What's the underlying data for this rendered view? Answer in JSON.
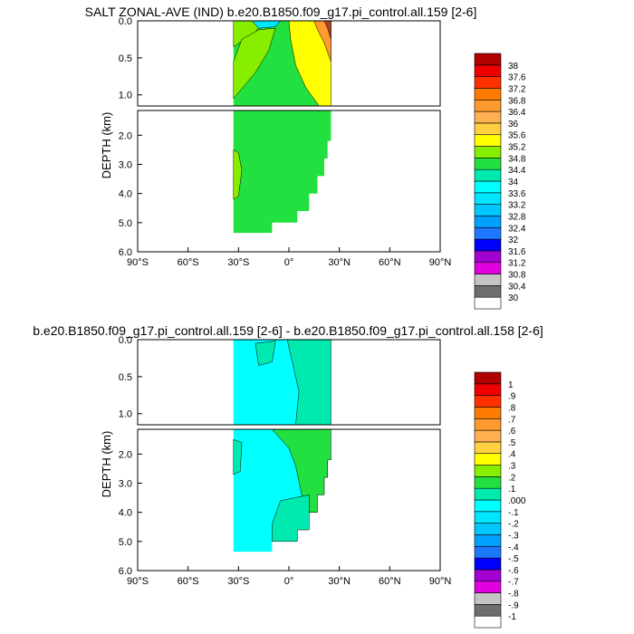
{
  "chart_data": [
    {
      "type": "heatmap",
      "title": "SALT ZONAL-AVE (IND) b.e20.B1850.f09_g17.pi_control.all.159 [2-6]",
      "ylabel": "DEPTH (km)",
      "xlim": [
        -90,
        90
      ],
      "ylim": [
        6.0,
        0.0
      ],
      "x_ticks": [
        "90°S",
        "60°S",
        "30°S",
        "0°",
        "30°N",
        "60°N",
        "90°N"
      ],
      "y_ticks_upper": [
        "0.0",
        "0.5",
        "1.0"
      ],
      "y_ticks_lower": [
        "2.0",
        "3.0",
        "4.0",
        "5.0",
        "6.0"
      ],
      "colorbar_labels": [
        "30",
        "30.4",
        "30.8",
        "31.2",
        "31.6",
        "32",
        "32.4",
        "32.8",
        "33.2",
        "33.6",
        "34",
        "34.4",
        "34.8",
        "35.2",
        "35.6",
        "36",
        "36.4",
        "36.8",
        "37.2",
        "37.6",
        "38"
      ],
      "colorbar_colors": [
        "#ffffff",
        "#6e6e6e",
        "#c4c4c4",
        "#e000e0",
        "#a000d0",
        "#0000ff",
        "#1e78ff",
        "#00a0ff",
        "#00c8ff",
        "#00e6ff",
        "#00ffff",
        "#00eab0",
        "#22e040",
        "#88ee00",
        "#ffff00",
        "#ffd040",
        "#ffb050",
        "#ff9a30",
        "#ff7a00",
        "#ff3000",
        "#ee0000",
        "#b00000"
      ],
      "region": {
        "x_west": -33,
        "x_east": 25,
        "bottom_depth": 5.35
      },
      "fields": [
        {
          "range": [
            34.4,
            34.8
          ],
          "color": "#22e040",
          "where": "dominant water mass, upper and deep"
        },
        {
          "range": [
            34.8,
            35.2
          ],
          "color": "#88ee00",
          "where": "upper 1 km south of 20°S and deep south 2.5–4 km"
        },
        {
          "range": [
            35.2,
            35.6
          ],
          "color": "#ffff00",
          "where": "northern upper ocean 0–1.2 km"
        },
        {
          "range": [
            35.6,
            38.0
          ],
          "color": "#ff9a30",
          "where": "surface near 20–25°N"
        },
        {
          "range": [
            33.6,
            34.4
          ],
          "color": "#00e6ff",
          "where": "near-surface 25°S–5°S"
        }
      ]
    },
    {
      "type": "heatmap",
      "title": "b.e20.B1850.f09_g17.pi_control.all.159 [2-6] - b.e20.B1850.f09_g17.pi_control.all.158 [2-6]",
      "ylabel": "DEPTH (km)",
      "xlim": [
        -90,
        90
      ],
      "ylim": [
        6.0,
        0.0
      ],
      "x_ticks": [
        "90°S",
        "60°S",
        "30°S",
        "0°",
        "30°N",
        "60°N",
        "90°N"
      ],
      "y_ticks_upper": [
        "0.0",
        "0.5",
        "1.0"
      ],
      "y_ticks_lower": [
        "2.0",
        "3.0",
        "4.0",
        "5.0",
        "6.0"
      ],
      "colorbar_labels": [
        "-1",
        "-.9",
        "-.8",
        "-.7",
        "-.6",
        "-.5",
        "-.4",
        "-.3",
        "-.2",
        "-.1",
        ".000",
        ".1",
        ".2",
        ".3",
        ".4",
        ".5",
        ".6",
        ".7",
        ".8",
        ".9",
        "1"
      ],
      "colorbar_colors": [
        "#ffffff",
        "#6e6e6e",
        "#c4c4c4",
        "#e000e0",
        "#a000d0",
        "#0000ff",
        "#1e78ff",
        "#00a0ff",
        "#00c8ff",
        "#00e6ff",
        "#00ffff",
        "#00eab0",
        "#22e040",
        "#88ee00",
        "#ffff00",
        "#ffd040",
        "#ffb050",
        "#ff9a30",
        "#ff7a00",
        "#ff3000",
        "#ee0000",
        "#b00000"
      ],
      "region": {
        "x_west": -33,
        "x_east": 25,
        "bottom_depth": 5.35
      },
      "fields": [
        {
          "range": [
            -0.1,
            0.0
          ],
          "color": "#00ffff",
          "where": "most of the section"
        },
        {
          "range": [
            0.0,
            0.1
          ],
          "color": "#00eab0",
          "where": "eastern upper ocean and deep northeast"
        },
        {
          "range": [
            0.1,
            0.2
          ],
          "color": "#22e040",
          "where": "below 1.5 km east of 5°N"
        }
      ]
    }
  ]
}
